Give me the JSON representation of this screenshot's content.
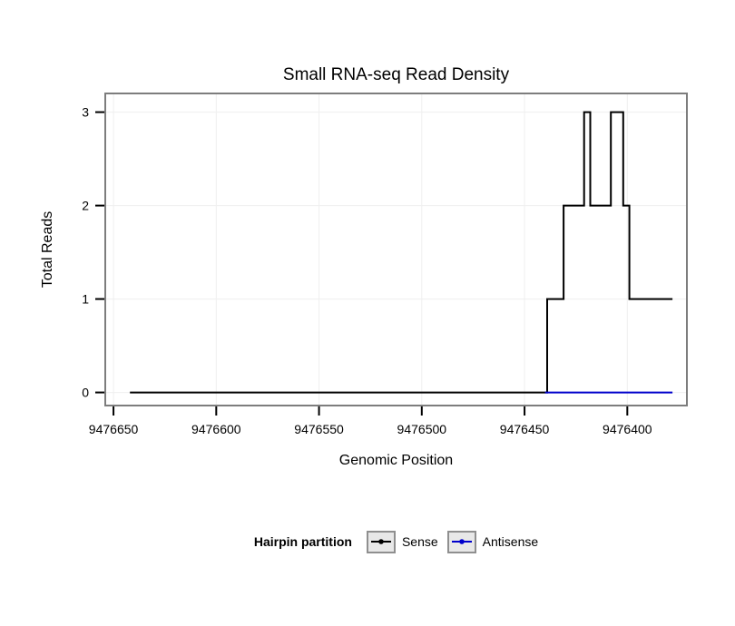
{
  "figure": {
    "title": "Small RNA-seq Read Density"
  },
  "chart_data": {
    "type": "line",
    "title": "Small RNA-seq Read Density",
    "xlabel": "Genomic Position",
    "ylabel": "Total Reads",
    "x_reversed": true,
    "xlim": [
      9476654,
      9476371
    ],
    "ylim": [
      -0.14,
      3.2
    ],
    "x_ticks": [
      9476650,
      9476600,
      9476550,
      9476500,
      9476450,
      9476400
    ],
    "y_ticks": [
      0,
      1,
      2,
      3
    ],
    "grid": true,
    "legend_position": "bottom",
    "colors": {
      "grid": "#efefef",
      "panel_border": "#7d7d7d",
      "tick": "#000000",
      "text": "#000000"
    },
    "series": [
      {
        "name": "Sense",
        "color": "#000000",
        "points": [
          [
            9476642,
            0
          ],
          [
            9476439,
            0
          ],
          [
            9476439,
            1
          ],
          [
            9476431,
            1
          ],
          [
            9476431,
            2
          ],
          [
            9476421,
            2
          ],
          [
            9476421,
            3
          ],
          [
            9476418,
            3
          ],
          [
            9476418,
            2
          ],
          [
            9476408,
            2
          ],
          [
            9476408,
            3
          ],
          [
            9476402,
            3
          ],
          [
            9476402,
            2
          ],
          [
            9476399,
            2
          ],
          [
            9476399,
            1
          ],
          [
            9476378,
            1
          ]
        ]
      },
      {
        "name": "Antisense",
        "color": "#0000CC",
        "points": [
          [
            9476440,
            0
          ],
          [
            9476378,
            0
          ]
        ]
      }
    ]
  },
  "legend": {
    "title": "Hairpin partition",
    "entries": [
      {
        "label": "Sense",
        "color": "#000000"
      },
      {
        "label": "Antisense",
        "color": "#0000CC"
      }
    ]
  }
}
